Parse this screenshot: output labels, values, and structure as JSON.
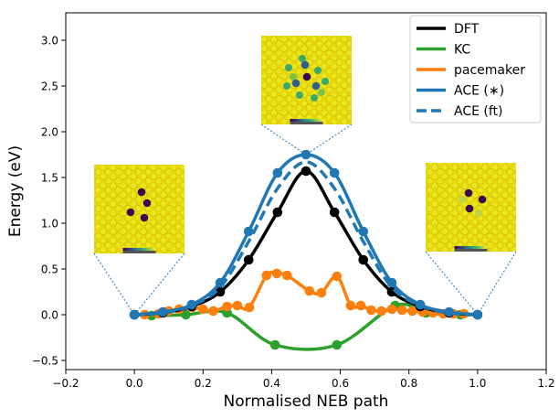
{
  "chart_data": {
    "type": "line",
    "xlabel": "Normalised NEB path",
    "ylabel": "Energy (eV)",
    "xlim": [
      -0.2,
      1.2
    ],
    "ylim": [
      -0.6,
      3.3
    ],
    "xticks": [
      "−0.2",
      "0.0",
      "0.2",
      "0.4",
      "0.6",
      "0.8",
      "1.0",
      "1.2"
    ],
    "xtick_values": [
      -0.2,
      0.0,
      0.2,
      0.4,
      0.6,
      0.8,
      1.0,
      1.2
    ],
    "yticks": [
      "−0.5",
      "0.0",
      "0.5",
      "1.0",
      "1.5",
      "2.0",
      "2.5",
      "3.0"
    ],
    "ytick_values": [
      -0.5,
      0.0,
      0.5,
      1.0,
      1.5,
      2.0,
      2.5,
      3.0
    ],
    "legend_position": "top-right",
    "series": [
      {
        "name": "DFT",
        "color": "#000000",
        "style": "solid",
        "markers": true,
        "x": [
          0.0,
          0.083,
          0.167,
          0.25,
          0.333,
          0.417,
          0.5,
          0.583,
          0.667,
          0.75,
          0.833,
          0.917,
          1.0
        ],
        "y": [
          0.0,
          0.02,
          0.09,
          0.25,
          0.6,
          1.12,
          1.57,
          1.12,
          0.6,
          0.25,
          0.09,
          0.02,
          0.0
        ]
      },
      {
        "name": "KC",
        "color": "#2ca02c",
        "style": "solid",
        "markers": true,
        "x": [
          0.0,
          0.05,
          0.15,
          0.27,
          0.41,
          0.59,
          0.76,
          0.85,
          0.95,
          1.0
        ],
        "y": [
          0.0,
          -0.01,
          0.0,
          0.02,
          -0.33,
          -0.33,
          0.1,
          0.02,
          0.0,
          0.0
        ]
      },
      {
        "name": "pacemaker",
        "color": "#ff7f0e",
        "style": "solid",
        "markers": true,
        "x": [
          0.0,
          0.03,
          0.07,
          0.1,
          0.13,
          0.17,
          0.2,
          0.23,
          0.27,
          0.3,
          0.335,
          0.385,
          0.415,
          0.445,
          0.51,
          0.545,
          0.59,
          0.63,
          0.66,
          0.69,
          0.72,
          0.75,
          0.78,
          0.81,
          0.84,
          0.87,
          0.9,
          0.93,
          0.96,
          1.0
        ],
        "y": [
          0.0,
          0.0,
          0.01,
          0.04,
          0.06,
          0.08,
          0.06,
          0.04,
          0.09,
          0.1,
          0.08,
          0.43,
          0.45,
          0.43,
          0.26,
          0.24,
          0.42,
          0.1,
          0.1,
          0.05,
          0.04,
          0.06,
          0.05,
          0.04,
          0.03,
          0.02,
          0.01,
          0.01,
          0.01,
          0.0
        ]
      },
      {
        "name": "ACE (∗)",
        "color": "#1f77b4",
        "style": "solid",
        "markers": true,
        "x": [
          0.0,
          0.083,
          0.167,
          0.25,
          0.333,
          0.417,
          0.5,
          0.583,
          0.667,
          0.75,
          0.833,
          0.917,
          1.0
        ],
        "y": [
          0.0,
          0.03,
          0.11,
          0.35,
          0.91,
          1.55,
          1.75,
          1.55,
          0.91,
          0.35,
          0.11,
          0.03,
          0.0
        ]
      },
      {
        "name": "ACE (ft)",
        "color": "#1f77b4",
        "style": "dashed",
        "markers": false,
        "x": [
          0.0,
          0.083,
          0.167,
          0.25,
          0.333,
          0.417,
          0.5,
          0.583,
          0.667,
          0.75,
          0.833,
          0.917,
          1.0
        ],
        "y": [
          0.0,
          0.02,
          0.1,
          0.3,
          0.8,
          1.38,
          1.67,
          1.38,
          0.8,
          0.3,
          0.1,
          0.02,
          0.0
        ]
      }
    ],
    "insets": [
      {
        "name": "initial-structure",
        "anchor_x": 0.0,
        "anchor_y": 0.0
      },
      {
        "name": "saddle-structure",
        "anchor_x": 0.5,
        "anchor_y": 1.75
      },
      {
        "name": "final-structure",
        "anchor_x": 1.0,
        "anchor_y": 0.0
      }
    ]
  }
}
